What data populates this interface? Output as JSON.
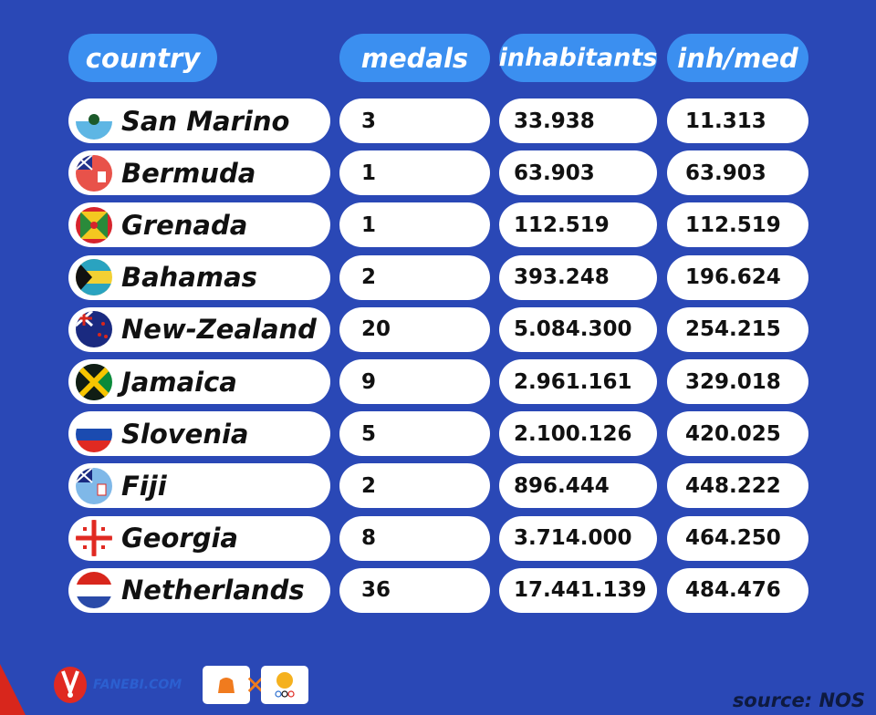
{
  "chart_data": {
    "type": "table",
    "columns": [
      "country",
      "medals",
      "inhabitants",
      "inh/med"
    ],
    "rows": [
      {
        "country": "San Marino",
        "flag": "san-marino-flag",
        "medals": "3",
        "inhabitants": "33.938",
        "inh_med": "11.313"
      },
      {
        "country": "Bermuda",
        "flag": "bermuda-flag",
        "medals": "1",
        "inhabitants": "63.903",
        "inh_med": "63.903"
      },
      {
        "country": "Grenada",
        "flag": "grenada-flag",
        "medals": "1",
        "inhabitants": "112.519",
        "inh_med": "112.519"
      },
      {
        "country": "Bahamas",
        "flag": "bahamas-flag",
        "medals": "2",
        "inhabitants": "393.248",
        "inh_med": "196.624"
      },
      {
        "country": "New-Zealand",
        "flag": "new-zealand-flag",
        "medals": "20",
        "inhabitants": "5.084.300",
        "inh_med": "254.215"
      },
      {
        "country": "Jamaica",
        "flag": "jamaica-flag",
        "medals": "9",
        "inhabitants": "2.961.161",
        "inh_med": "329.018"
      },
      {
        "country": "Slovenia",
        "flag": "slovenia-flag",
        "medals": "5",
        "inhabitants": "2.100.126",
        "inh_med": "420.025"
      },
      {
        "country": "Fiji",
        "flag": "fiji-flag",
        "medals": "2",
        "inhabitants": "896.444",
        "inh_med": "448.222"
      },
      {
        "country": "Georgia",
        "flag": "georgia-flag",
        "medals": "8",
        "inhabitants": "3.714.000",
        "inh_med": "464.250"
      },
      {
        "country": "Netherlands",
        "flag": "netherlands-flag",
        "medals": "36",
        "inhabitants": "17.441.139",
        "inh_med": "484.476"
      }
    ]
  },
  "footer": {
    "brand": "FANEBI.COM",
    "source": "source: NOS"
  },
  "colors": {
    "background": "#2a48b6",
    "header_pill": "#3b8ff0",
    "row_pill": "#ffffff"
  }
}
